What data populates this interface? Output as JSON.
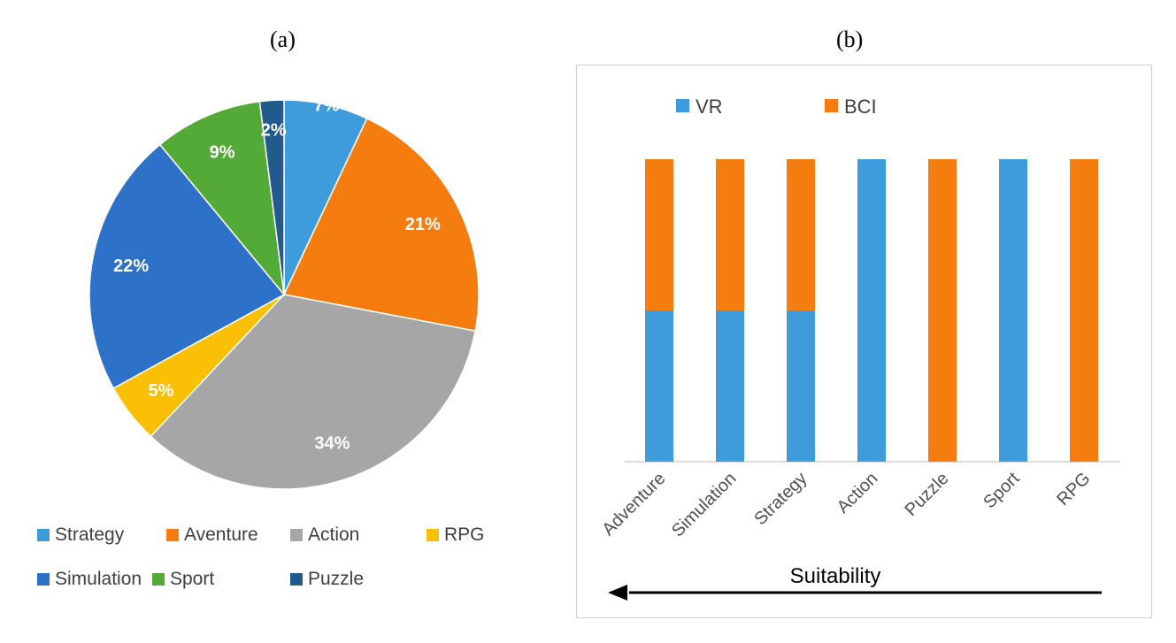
{
  "panels": {
    "a": "(a)",
    "b": "(b)"
  },
  "chart_data": [
    {
      "type": "pie",
      "slices": [
        {
          "label": "Strategy",
          "value": 7,
          "display": "7%",
          "color": "#3e9cdc"
        },
        {
          "label": "Aventure",
          "value": 21,
          "display": "21%",
          "color": "#f57c0f"
        },
        {
          "label": "Action",
          "value": 34,
          "display": "34%",
          "color": "#a6a6a6"
        },
        {
          "label": "RPG",
          "value": 5,
          "display": "5%",
          "color": "#fbbf05"
        },
        {
          "label": "Simulation",
          "value": 22,
          "display": "22%",
          "color": "#2e71c9"
        },
        {
          "label": "Sport",
          "value": 9,
          "display": "9%",
          "color": "#53aa36"
        },
        {
          "label": "Puzzle",
          "value": 2,
          "display": "2%",
          "color": "#225a8d"
        }
      ],
      "legend": [
        "Strategy",
        "Aventure",
        "Action",
        "RPG",
        "Simulation",
        "Sport",
        "Puzzle"
      ],
      "legend_placement": "bottom"
    },
    {
      "type": "bar",
      "stacked": true,
      "categories": [
        "Adventure",
        "Simulation",
        "Strategy",
        "Action",
        "Puzzle",
        "Sport",
        "RPG"
      ],
      "series": [
        {
          "name": "VR",
          "values": [
            0.5,
            0.5,
            0.5,
            1,
            0,
            1,
            0
          ],
          "color": "#3e9cdc"
        },
        {
          "name": "BCI",
          "values": [
            0.5,
            0.5,
            0.5,
            0,
            1,
            0,
            1
          ],
          "color": "#f57c0f"
        }
      ],
      "ylim": [
        0,
        1
      ],
      "grid": false,
      "legend_placement": "top-left",
      "annotation": "Suitability",
      "annotation_arrow": "right-to-left"
    }
  ]
}
